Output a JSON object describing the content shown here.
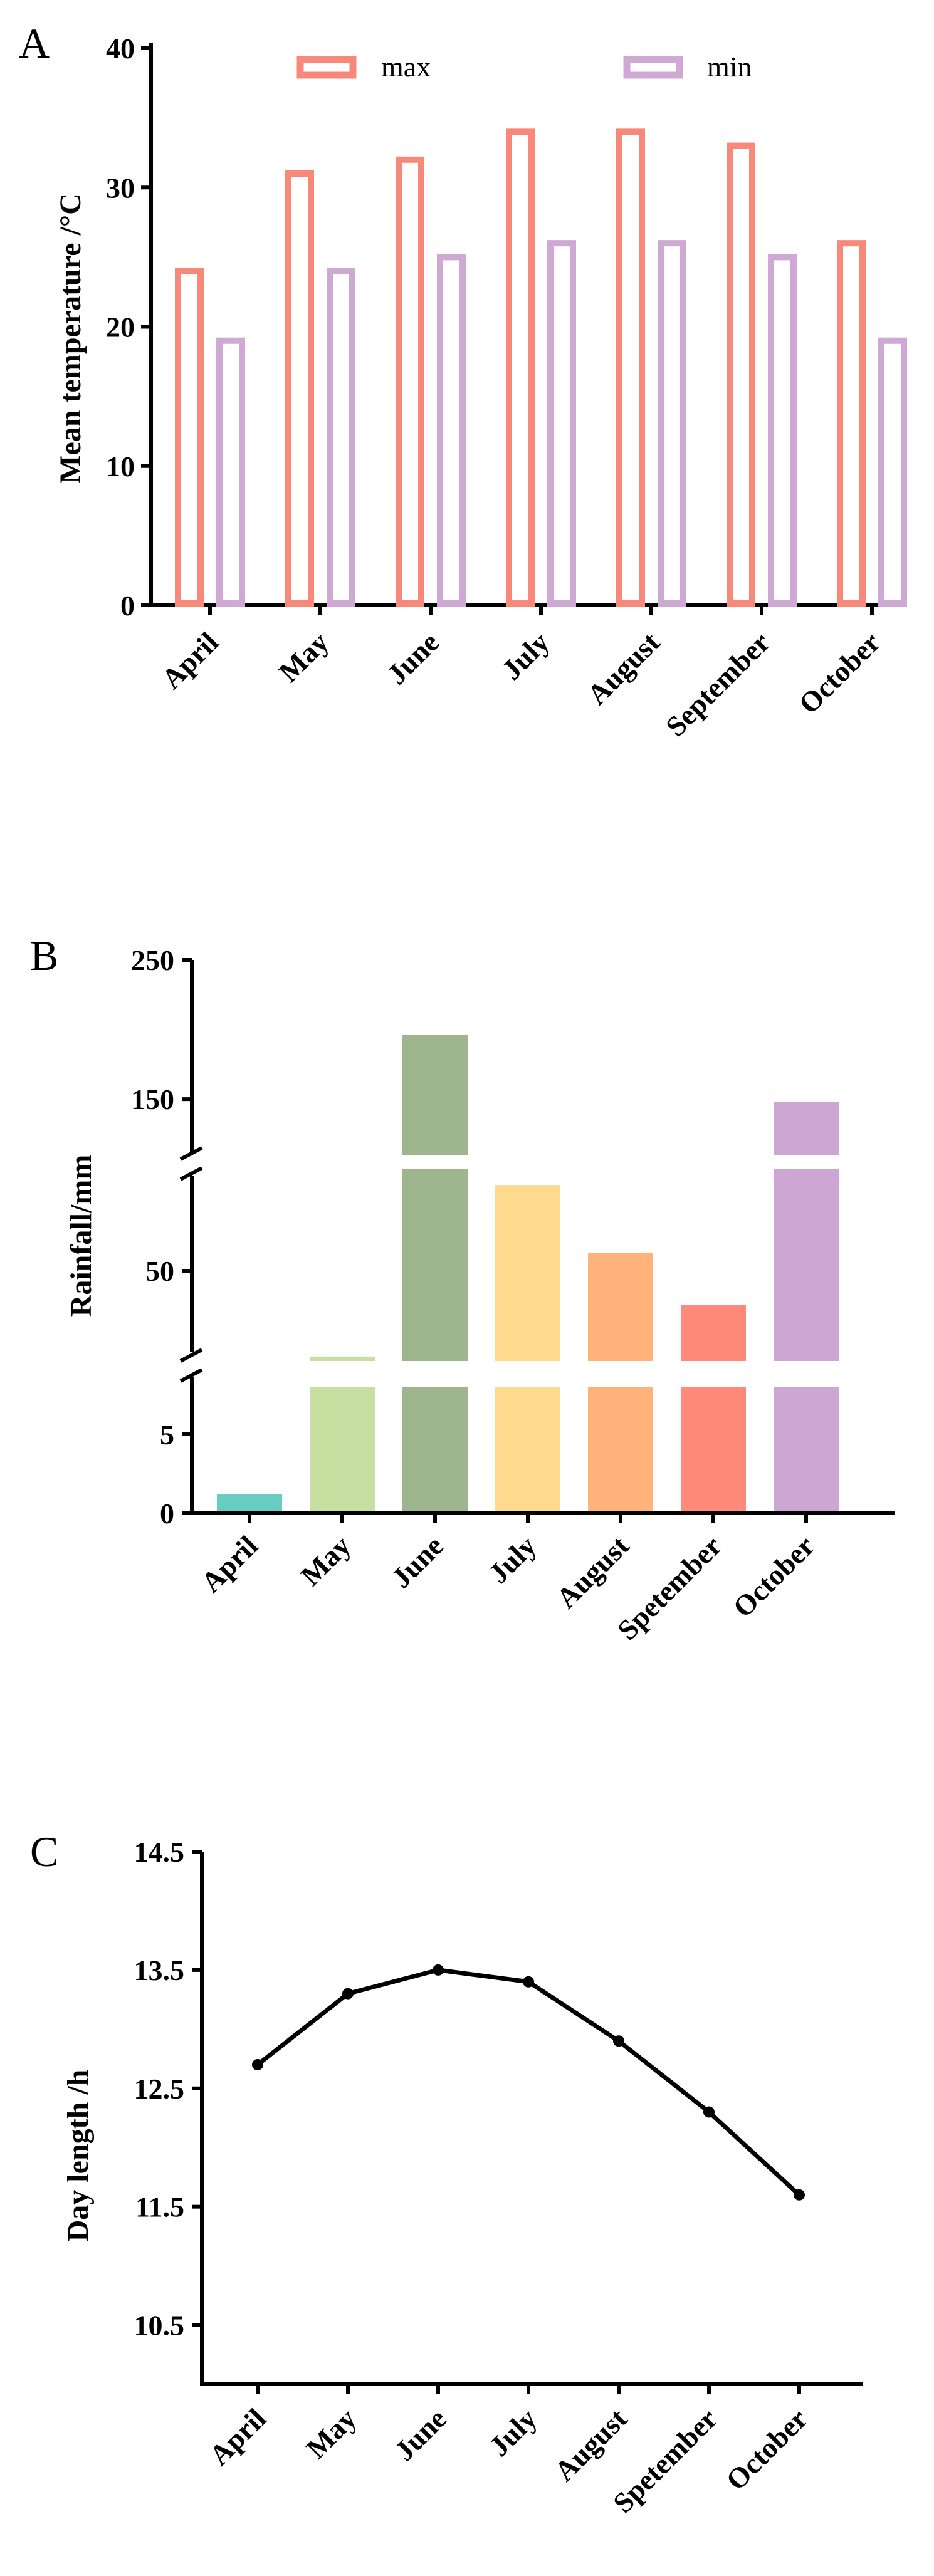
{
  "chart_data": [
    {
      "panel": "A",
      "type": "bar",
      "ylabel": "Mean temperature /°C",
      "xlabel": "",
      "categories": [
        "April",
        "May",
        "June",
        "July",
        "August",
        "September",
        "October"
      ],
      "series": [
        {
          "name": "max",
          "color": "#F8887A",
          "values": [
            24,
            31,
            32,
            34,
            34,
            33,
            26
          ]
        },
        {
          "name": "min",
          "color": "#CDA9D3",
          "values": [
            19,
            24,
            25,
            26,
            26,
            25,
            19
          ]
        }
      ],
      "ylim": [
        0,
        40
      ],
      "yticks": [
        "0",
        "10",
        "20",
        "30",
        "40"
      ],
      "legend": "top"
    },
    {
      "panel": "B",
      "type": "bar",
      "ylabel": "Rainfall/mm",
      "xlabel": "",
      "categories": [
        "April",
        "May",
        "June",
        "July",
        "August",
        "Spetember",
        "October"
      ],
      "values": [
        1.2,
        12,
        196,
        88,
        58,
        35,
        148
      ],
      "colors": [
        "#66CDC0",
        "#C7E0A2",
        "#9EB58D",
        "#FFDA8E",
        "#FFB27A",
        "#FF8A7A",
        "#CDA7D3"
      ],
      "yticks": [
        "0",
        "5",
        "50",
        "150",
        "250"
      ],
      "ylim": [
        0,
        250
      ],
      "axis_breaks": [
        [
          8,
          10
        ],
        [
          95,
          110
        ]
      ]
    },
    {
      "panel": "C",
      "type": "line",
      "ylabel": "Day length /h",
      "xlabel": "",
      "categories": [
        "April",
        "May",
        "June",
        "July",
        "August",
        "Spetember",
        "October"
      ],
      "values": [
        12.7,
        13.3,
        13.5,
        13.4,
        12.9,
        12.3,
        11.6
      ],
      "ylim": [
        10.0,
        14.5
      ],
      "yticks": [
        "10.5",
        "11.5",
        "12.5",
        "13.5",
        "14.5"
      ]
    }
  ]
}
